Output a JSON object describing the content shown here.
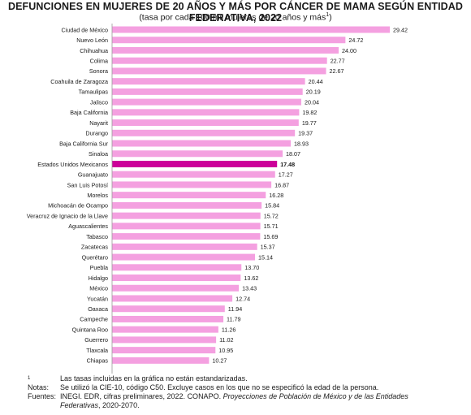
{
  "header": {
    "title": "DEFUNCIONES EN MUJERES DE 20 AÑOS Y MÁS POR CÁNCER DE MAMA SEGÚN ENTIDAD FEDERATIVA, 2022",
    "subtitle": "(tasa por cada 100 mil mujeres de 20 años y más",
    "subtitle_sup": "1",
    "subtitle_close": ")"
  },
  "chart_data": {
    "type": "bar",
    "orientation": "horizontal",
    "categories": [
      "Ciudad de México",
      "Nuevo León",
      "Chihuahua",
      "Colima",
      "Sonora",
      "Coahuila de Zaragoza",
      "Tamaulipas",
      "Jalisco",
      "Baja California",
      "Nayarit",
      "Durango",
      "Baja California Sur",
      "Sinaloa",
      "Estados Unidos Mexicanos",
      "Guanajuato",
      "San Luis Potosí",
      "Morelos",
      "Michoacán de Ocampo",
      "Veracruz de Ignacio de la Llave",
      "Aguascalientes",
      "Tabasco",
      "Zacatecas",
      "Querétaro",
      "Puebla",
      "Hidalgo",
      "México",
      "Yucatán",
      "Oaxaca",
      "Campeche",
      "Quintana Roo",
      "Guerrero",
      "Tlaxcala",
      "Chiapas"
    ],
    "values": [
      29.42,
      24.72,
      24.0,
      22.77,
      22.67,
      20.44,
      20.19,
      20.04,
      19.82,
      19.77,
      19.37,
      18.93,
      18.07,
      17.48,
      17.27,
      16.87,
      16.28,
      15.84,
      15.72,
      15.71,
      15.69,
      15.37,
      15.14,
      13.7,
      13.62,
      13.43,
      12.74,
      11.94,
      11.79,
      11.26,
      11.02,
      10.95,
      10.27
    ],
    "value_labels": [
      "29.42",
      "24.72",
      "24.00",
      "22.77",
      "22.67",
      "20.44",
      "20.19",
      "20.04",
      "19.82",
      "19.77",
      "19.37",
      "18.93",
      "18.07",
      "17.48",
      "17.27",
      "16.87",
      "16.28",
      "15.84",
      "15.72",
      "15.71",
      "15.69",
      "15.37",
      "15.14",
      "13.70",
      "13.62",
      "13.43",
      "12.74",
      "11.94",
      "11.79",
      "11.26",
      "11.02",
      "10.95",
      "10.27"
    ],
    "highlight": "Estados Unidos Mexicanos",
    "colors": {
      "bar": "#f4a0e0",
      "highlight": "#cc0099",
      "axis": "#999999"
    },
    "xlim": [
      0,
      30
    ],
    "grid": false,
    "legend": "none"
  },
  "notes": {
    "note1_key": "1",
    "note1_text": "Las tasas incluidas en la gráfica no están estandarizadas.",
    "note2_key": "Notas:",
    "note2_text_a": "Se utilizó la ",
    "note2_cie": "CIE",
    "note2_text_b": "-10, código C50. Excluye casos en los que no se especificó la edad de la persona.",
    "note3_key": "Fuentes:",
    "note3_inegi": "INEGI. EDR",
    "note3_text_a": ", cifras preliminares, 2022. ",
    "note3_conapo": "CONAPO",
    "note3_text_b": ". ",
    "note3_italic_a": "Proyecciones de Población de México y de las Entidades",
    "note3_italic_b": "Federativas",
    "note3_text_c": ", 2020-2070."
  }
}
